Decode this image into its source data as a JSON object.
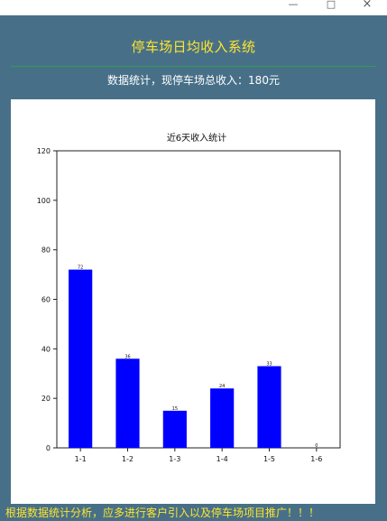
{
  "window": {
    "controls": {
      "minimize": "—",
      "maximize": "□",
      "close": "×"
    }
  },
  "header": {
    "title": "停车场日均收入系统",
    "summary": "数据统计，现停车场总收入：180元"
  },
  "footer": {
    "message": "根据数据统计分析，应多进行客户引入以及停车场项目推广！！！"
  },
  "colors": {
    "app_background": "#477088",
    "title_text": "#ffe42d",
    "divider": "#2f9c4f",
    "bar": "#0000ff"
  },
  "chart_data": {
    "type": "bar",
    "title": "近6天收入统计",
    "categories": [
      "1-1",
      "1-2",
      "1-3",
      "1-4",
      "1-5",
      "1-6"
    ],
    "values": [
      72,
      36,
      15,
      24,
      33,
      0
    ],
    "data_labels": [
      "72",
      "36",
      "15",
      "24",
      "33",
      "0"
    ],
    "ylim": [
      0,
      120
    ],
    "yticks": [
      0,
      20,
      40,
      60,
      80,
      100,
      120
    ],
    "grid": false,
    "legend": "none"
  }
}
